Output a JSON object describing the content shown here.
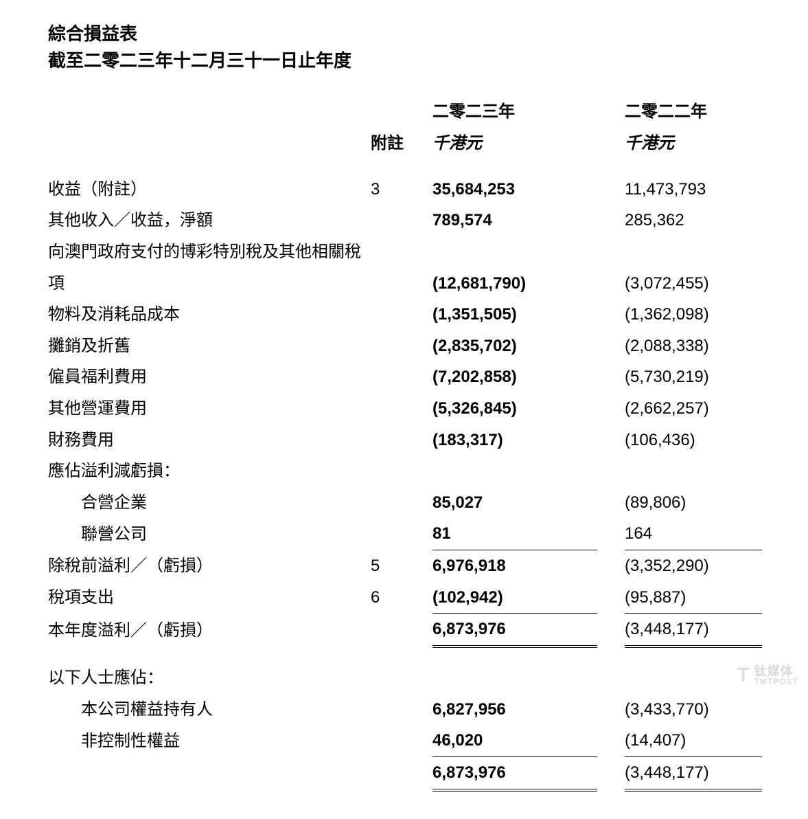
{
  "header": {
    "title": "綜合損益表",
    "subtitle": "截至二零二三年十二月三十一日止年度"
  },
  "columns": {
    "note_label": "附註",
    "year1_label": "二零二三年",
    "year1_unit": "千港元",
    "year2_label": "二零二二年",
    "year2_unit": "千港元"
  },
  "rows": [
    {
      "label": "收益（附註）",
      "note": "3",
      "y1": "35,684,253",
      "y2": "11,473,793"
    },
    {
      "label": "其他收入／收益，淨額",
      "note": "",
      "y1": "789,574",
      "y2": "285,362"
    },
    {
      "label": "向澳門政府支付的博彩特別稅及其他相關稅項",
      "note": "",
      "y1": "(12,681,790)",
      "y2": "(3,072,455)"
    },
    {
      "label": "物料及消耗品成本",
      "note": "",
      "y1": "(1,351,505)",
      "y2": "(1,362,098)"
    },
    {
      "label": "攤銷及折舊",
      "note": "",
      "y1": "(2,835,702)",
      "y2": "(2,088,338)"
    },
    {
      "label": "僱員福利費用",
      "note": "",
      "y1": "(7,202,858)",
      "y2": "(5,730,219)"
    },
    {
      "label": "其他營運費用",
      "note": "",
      "y1": "(5,326,845)",
      "y2": "(2,662,257)"
    },
    {
      "label": "財務費用",
      "note": "",
      "y1": "(183,317)",
      "y2": "(106,436)"
    }
  ],
  "share_header": "應佔溢利減虧損：",
  "share_rows": [
    {
      "label": "合營企業",
      "y1": "85,027",
      "y2": "(89,806)"
    },
    {
      "label": "聯營公司",
      "y1": "81",
      "y2": "164"
    }
  ],
  "pretax": {
    "label": "除稅前溢利／（虧損）",
    "note": "5",
    "y1": "6,976,918",
    "y2": "(3,352,290)"
  },
  "tax": {
    "label": "稅項支出",
    "note": "6",
    "y1": "(102,942)",
    "y2": "(95,887)"
  },
  "netprofit": {
    "label": "本年度溢利／（虧損）",
    "note": "",
    "y1": "6,873,976",
    "y2": "(3,448,177)"
  },
  "attrib_header": "以下人士應佔：",
  "attrib_rows": [
    {
      "label": "本公司權益持有人",
      "y1": "6,827,956",
      "y2": "(3,433,770)"
    },
    {
      "label": "非控制性權益",
      "y1": "46,020",
      "y2": "(14,407)"
    }
  ],
  "attrib_total": {
    "y1": "6,873,976",
    "y2": "(3,448,177)"
  },
  "watermark": {
    "logo": "T",
    "text1": "钛媒体",
    "text2": "TMTPOST"
  },
  "style": {
    "text_color": "#000000",
    "background": "#ffffff",
    "watermark_color": "#d9d9d9",
    "title_fontsize": 26,
    "body_fontsize": 24
  }
}
